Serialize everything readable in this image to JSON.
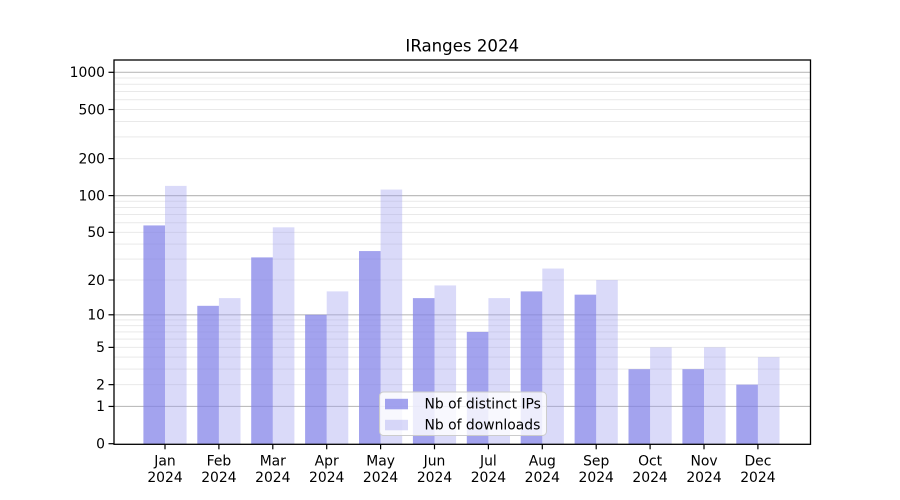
{
  "chart_data": {
    "type": "bar",
    "title": "IRanges 2024",
    "x_categories": [
      "Jan",
      "Feb",
      "Mar",
      "Apr",
      "May",
      "Jun",
      "Jul",
      "Aug",
      "Sep",
      "Oct",
      "Nov",
      "Dec"
    ],
    "x_year_label": "2024",
    "series": [
      {
        "name": "Nb of distinct IPs",
        "key": "distinct-ips",
        "color": "#7f7fe8",
        "alpha": 0.72,
        "values": [
          57,
          12,
          31,
          10,
          35,
          14,
          7,
          16,
          15,
          3,
          3,
          2
        ]
      },
      {
        "name": "Nb of downloads",
        "key": "downloads",
        "color": "#9f9fef",
        "alpha": 0.38,
        "values": [
          120,
          14,
          55,
          16,
          112,
          18,
          14,
          25,
          20,
          5,
          5,
          4
        ]
      }
    ],
    "y_scale": "log10(1+x)",
    "y_tick_labels": [
      0,
      1,
      2,
      5,
      10,
      20,
      50,
      100,
      200,
      500,
      1000
    ],
    "y_major_gridlines": [
      1,
      10,
      100,
      1000
    ],
    "ylim": [
      0,
      1258
    ],
    "grid": true,
    "legend_position": "lower-center-inside",
    "colors": {
      "minor_grid": "#e9e9e9",
      "major_grid": "#bdbdbd",
      "axis": "#000000",
      "legend_border": "#cccccc",
      "legend_background": "#ffffff"
    }
  }
}
